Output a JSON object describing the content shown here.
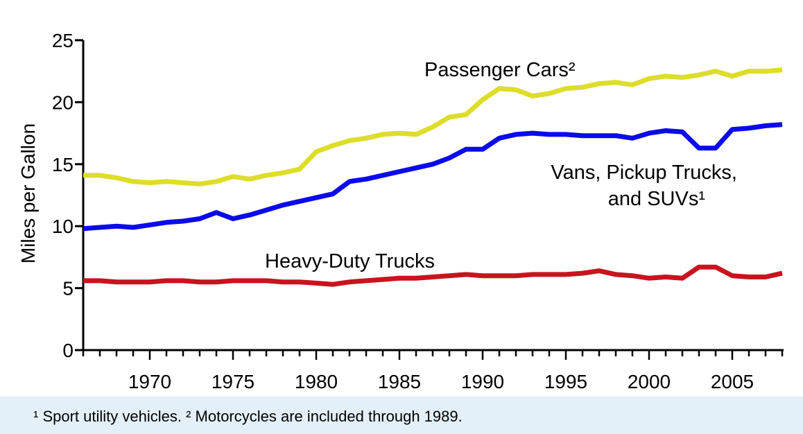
{
  "chart_data": {
    "type": "line",
    "ylabel": "Miles per Gallon",
    "xlabel": "",
    "ylim": [
      0,
      25
    ],
    "yticks": [
      0,
      5,
      10,
      15,
      20,
      25
    ],
    "xlim": [
      1966,
      2008
    ],
    "xticks": [
      1970,
      1975,
      1980,
      1985,
      1990,
      1995,
      2000,
      2005
    ],
    "grid": false,
    "x": [
      1966,
      1967,
      1968,
      1969,
      1970,
      1971,
      1972,
      1973,
      1974,
      1975,
      1976,
      1977,
      1978,
      1979,
      1980,
      1981,
      1982,
      1983,
      1984,
      1985,
      1986,
      1987,
      1988,
      1989,
      1990,
      1991,
      1992,
      1993,
      1994,
      1995,
      1996,
      1997,
      1998,
      1999,
      2000,
      2001,
      2002,
      2003,
      2004,
      2005,
      2006,
      2007,
      2008
    ],
    "series": [
      {
        "name": "Passenger Cars²",
        "color": "#dddd2a",
        "values": [
          14.1,
          14.1,
          13.9,
          13.6,
          13.5,
          13.6,
          13.5,
          13.4,
          13.6,
          14.0,
          13.8,
          14.1,
          14.3,
          14.6,
          16.0,
          16.5,
          16.9,
          17.1,
          17.4,
          17.5,
          17.4,
          18.0,
          18.8,
          19.0,
          20.2,
          21.1,
          21.0,
          20.5,
          20.7,
          21.1,
          21.2,
          21.5,
          21.6,
          21.4,
          21.9,
          22.1,
          22.0,
          22.2,
          22.5,
          22.1,
          22.5,
          22.5,
          22.6
        ]
      },
      {
        "name": "Vans, Pickup Trucks, and SUVs¹",
        "color": "#0b0bea",
        "values": [
          9.8,
          9.9,
          10.0,
          9.9,
          10.1,
          10.3,
          10.4,
          10.6,
          11.1,
          10.6,
          10.9,
          11.3,
          11.7,
          12.0,
          12.3,
          12.6,
          13.6,
          13.8,
          14.1,
          14.4,
          14.7,
          15.0,
          15.5,
          16.2,
          16.2,
          17.1,
          17.4,
          17.5,
          17.4,
          17.4,
          17.3,
          17.3,
          17.3,
          17.1,
          17.5,
          17.7,
          17.6,
          16.3,
          16.3,
          17.8,
          17.9,
          18.1,
          18.2
        ]
      },
      {
        "name": "Heavy-Duty Trucks",
        "color": "#c8141e",
        "values": [
          5.6,
          5.6,
          5.5,
          5.5,
          5.5,
          5.6,
          5.6,
          5.5,
          5.5,
          5.6,
          5.6,
          5.6,
          5.5,
          5.5,
          5.4,
          5.3,
          5.5,
          5.6,
          5.7,
          5.8,
          5.8,
          5.9,
          6.0,
          6.1,
          6.0,
          6.0,
          6.0,
          6.1,
          6.1,
          6.1,
          6.2,
          6.4,
          6.1,
          6.0,
          5.8,
          5.9,
          5.8,
          6.7,
          6.7,
          6.0,
          5.9,
          5.9,
          6.2
        ]
      }
    ],
    "annotations": {
      "passenger_cars": "Passenger Cars²",
      "vans_line1": "Vans, Pickup Trucks,",
      "vans_line2": "and SUVs¹",
      "heavy_duty": "Heavy-Duty Trucks"
    }
  },
  "footnote": "¹ Sport utility vehicles.  ² Motorcycles are included through 1989."
}
